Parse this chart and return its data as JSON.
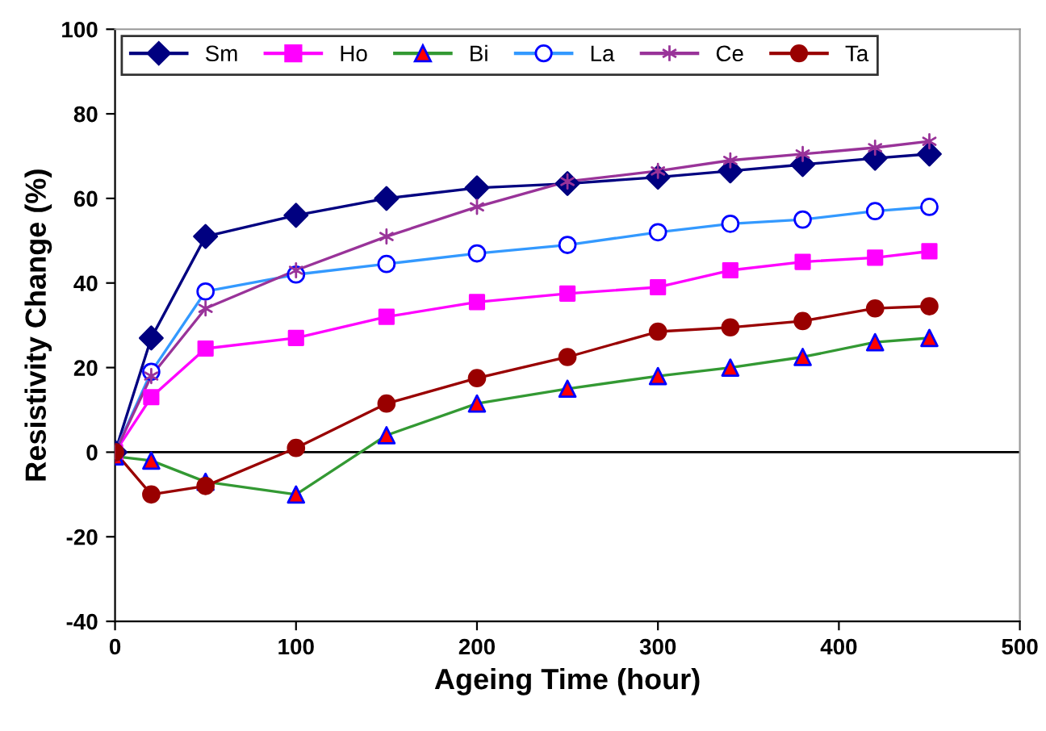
{
  "chart_data": {
    "type": "line",
    "xlabel": "Ageing Time (hour)",
    "ylabel": "Resistivity Change (%)",
    "x": [
      0,
      20,
      50,
      100,
      150,
      200,
      250,
      300,
      340,
      380,
      420,
      450
    ],
    "xlim": [
      0,
      500
    ],
    "xticks": [
      0,
      100,
      200,
      300,
      400,
      500
    ],
    "ylim": [
      -40,
      100
    ],
    "yticks": [
      -40,
      -20,
      0,
      20,
      40,
      60,
      80,
      100
    ],
    "grid": false,
    "legend": "top",
    "line_style": "solid",
    "ref_lines": [
      {
        "axis": "y",
        "value": 0,
        "color": "#000000"
      }
    ],
    "series": [
      {
        "name": "Sm",
        "color": "#000080",
        "marker": "diamond",
        "values": [
          0,
          27,
          51,
          56,
          60,
          62.5,
          63.5,
          65,
          66.5,
          68,
          69.5,
          70.5
        ]
      },
      {
        "name": "Ho",
        "color": "#ff00ff",
        "marker": "square",
        "values": [
          0,
          13,
          24.5,
          27,
          32,
          35.5,
          37.5,
          39,
          43,
          45,
          46,
          47.5
        ]
      },
      {
        "name": "Bi",
        "color": "#339933",
        "marker": "triangle",
        "colors": [
          "#ff0000",
          "#ff0000",
          "#ff0000",
          "#ff0000",
          "#ff0000",
          "#ff0000",
          "#ff0000",
          "#ff0000",
          "#ff0000",
          "#ff0000",
          "#ff0000",
          "#ff0000"
        ],
        "values": [
          -1,
          -2,
          -7,
          -10,
          4,
          11.5,
          15,
          18,
          20,
          22.5,
          26,
          27
        ]
      },
      {
        "name": "La",
        "color": "#3399ff",
        "marker": "circle",
        "colors": [
          "#ffffff",
          "#ffffff",
          "#ffffff",
          "#ffffff",
          "#ffffff",
          "#ffffff",
          "#ffffff",
          "#ffffff",
          "#ffffff",
          "#ffffff",
          "#ffffff",
          "#ffffff"
        ],
        "values": [
          0,
          19,
          38,
          42,
          44.5,
          47,
          49,
          52,
          54,
          55,
          57,
          58
        ]
      },
      {
        "name": "Ce",
        "color": "#993399",
        "marker": "cross",
        "values": [
          0,
          18,
          34,
          43,
          51,
          58,
          64,
          66.5,
          69,
          70.5,
          72,
          73.5
        ]
      },
      {
        "name": "Ta",
        "color": "#990000",
        "marker": "circle",
        "values": [
          0,
          -10,
          -8,
          1,
          11.5,
          17.5,
          22.5,
          28.5,
          29.5,
          31,
          34,
          34.5
        ]
      }
    ]
  }
}
